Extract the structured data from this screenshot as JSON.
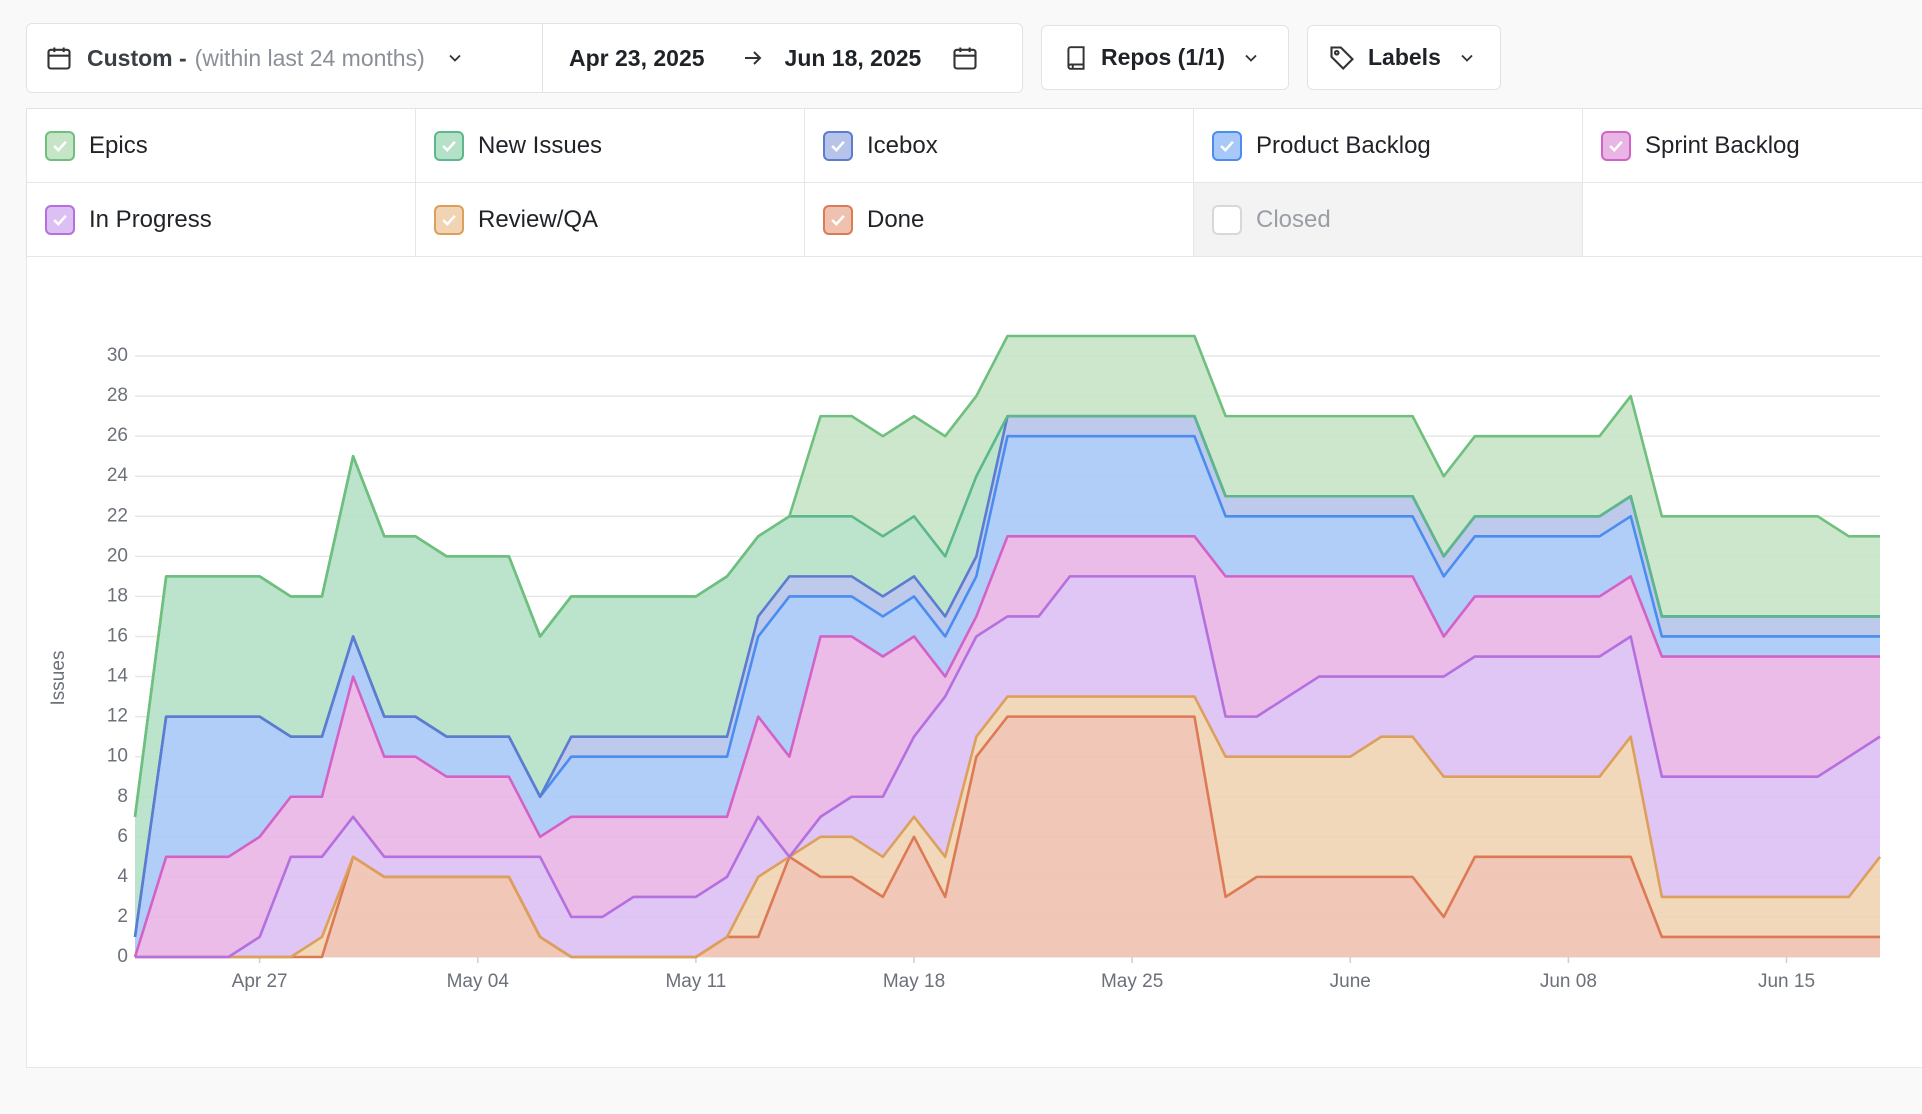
{
  "toolbar": {
    "range_label": "Custom -",
    "range_hint": "(within last 24 months)",
    "start_date": "Apr 23, 2025",
    "end_date": "Jun 18, 2025",
    "repos": "Repos (1/1)",
    "labels": "Labels"
  },
  "chart_data": {
    "type": "stacked_area",
    "y_label": "Issues",
    "categories": [
      null,
      null,
      null,
      null,
      "Apr 27",
      null,
      null,
      null,
      null,
      null,
      null,
      "May 04",
      null,
      null,
      null,
      null,
      null,
      null,
      "May 11",
      null,
      null,
      null,
      null,
      null,
      null,
      "May 18",
      null,
      null,
      null,
      null,
      null,
      null,
      "May 25",
      null,
      null,
      null,
      null,
      null,
      null,
      "June",
      null,
      null,
      null,
      null,
      null,
      null,
      "Jun 08",
      null,
      null,
      null,
      null,
      null,
      null,
      "Jun 15",
      null,
      null,
      null
    ],
    "ylim": [
      0,
      31
    ],
    "yticks": [
      0,
      2,
      4,
      6,
      8,
      10,
      12,
      14,
      16,
      18,
      20,
      22,
      24,
      26,
      28,
      30
    ],
    "grid": true,
    "series": [
      {
        "name": "Epics",
        "color": "#6fbf7e",
        "fill": "#c6e4c6",
        "values": [
          0,
          0,
          0,
          0,
          0,
          0,
          0,
          0,
          0,
          0,
          0,
          0,
          0,
          0,
          0,
          0,
          0,
          0,
          0,
          0,
          0,
          0,
          5,
          5,
          5,
          5,
          6,
          4,
          4,
          4,
          4,
          4,
          4,
          4,
          4,
          4,
          4,
          4,
          4,
          4,
          4,
          4,
          4,
          4,
          4,
          4,
          4,
          4,
          5,
          5,
          5,
          5,
          5,
          5,
          5,
          4,
          4
        ]
      },
      {
        "name": "New Issues",
        "color": "#5cb88a",
        "fill": "#b5e1c8",
        "values": [
          6,
          7,
          7,
          7,
          7,
          7,
          7,
          9,
          9,
          9,
          9,
          9,
          9,
          8,
          7,
          7,
          7,
          7,
          7,
          8,
          4,
          3,
          3,
          3,
          3,
          3,
          3,
          4,
          0,
          0,
          0,
          0,
          0,
          0,
          0,
          0,
          0,
          0,
          0,
          0,
          0,
          0,
          0,
          0,
          0,
          0,
          0,
          0,
          0,
          0,
          0,
          0,
          0,
          0,
          0,
          0,
          0
        ]
      },
      {
        "name": "Icebox",
        "color": "#5b7ccf",
        "fill": "#b6c4ea",
        "values": [
          0,
          0,
          0,
          0,
          0,
          0,
          0,
          0,
          0,
          0,
          0,
          0,
          0,
          0,
          1,
          1,
          1,
          1,
          1,
          1,
          1,
          1,
          1,
          1,
          1,
          1,
          1,
          1,
          1,
          1,
          1,
          1,
          1,
          1,
          1,
          1,
          1,
          1,
          1,
          1,
          1,
          1,
          1,
          1,
          1,
          1,
          1,
          1,
          1,
          1,
          1,
          1,
          1,
          1,
          1,
          1,
          1
        ]
      },
      {
        "name": "Product Backlog",
        "color": "#4a8cef",
        "fill": "#a8c9f8",
        "values": [
          1,
          7,
          7,
          7,
          6,
          3,
          3,
          2,
          2,
          2,
          2,
          2,
          2,
          2,
          3,
          3,
          3,
          3,
          3,
          3,
          4,
          8,
          2,
          2,
          2,
          2,
          2,
          2,
          5,
          5,
          5,
          5,
          5,
          5,
          5,
          3,
          3,
          3,
          3,
          3,
          3,
          3,
          3,
          3,
          3,
          3,
          3,
          3,
          3,
          1,
          1,
          1,
          1,
          1,
          1,
          1,
          1
        ]
      },
      {
        "name": "Sprint Backlog",
        "color": "#d462c6",
        "fill": "#e8b5e4",
        "values": [
          0,
          5,
          5,
          5,
          5,
          3,
          3,
          7,
          5,
          5,
          4,
          4,
          4,
          1,
          5,
          5,
          4,
          4,
          4,
          3,
          5,
          5,
          9,
          8,
          7,
          5,
          1,
          1,
          4,
          4,
          2,
          2,
          2,
          2,
          2,
          7,
          7,
          6,
          5,
          5,
          5,
          5,
          2,
          3,
          3,
          3,
          3,
          3,
          3,
          6,
          6,
          6,
          6,
          6,
          6,
          5,
          4
        ]
      },
      {
        "name": "In Progress",
        "color": "#b56fdf",
        "fill": "#ddc0f3",
        "values": [
          0,
          0,
          0,
          0,
          1,
          5,
          4,
          2,
          1,
          1,
          1,
          1,
          1,
          4,
          2,
          2,
          3,
          3,
          3,
          3,
          3,
          0,
          1,
          2,
          3,
          4,
          8,
          5,
          4,
          4,
          6,
          6,
          6,
          6,
          6,
          2,
          2,
          3,
          4,
          4,
          3,
          3,
          5,
          6,
          6,
          6,
          6,
          6,
          5,
          6,
          6,
          6,
          6,
          6,
          6,
          7,
          6
        ]
      },
      {
        "name": "Review/QA",
        "color": "#dc9f5c",
        "fill": "#f0d4b3",
        "values": [
          0,
          0,
          0,
          0,
          0,
          0,
          1,
          0,
          0,
          0,
          0,
          0,
          0,
          0,
          0,
          0,
          0,
          0,
          0,
          0,
          3,
          0,
          2,
          2,
          2,
          1,
          2,
          1,
          1,
          1,
          1,
          1,
          1,
          1,
          1,
          7,
          6,
          6,
          6,
          6,
          7,
          7,
          7,
          4,
          4,
          4,
          4,
          4,
          6,
          2,
          2,
          2,
          2,
          2,
          2,
          2,
          4
        ]
      },
      {
        "name": "Done",
        "color": "#dd7a56",
        "fill": "#efc1af",
        "values": [
          0,
          0,
          0,
          0,
          0,
          0,
          0,
          5,
          4,
          4,
          4,
          4,
          4,
          1,
          0,
          0,
          0,
          0,
          0,
          1,
          1,
          5,
          4,
          4,
          3,
          6,
          3,
          10,
          12,
          12,
          12,
          12,
          12,
          12,
          12,
          3,
          4,
          4,
          4,
          4,
          4,
          4,
          2,
          5,
          5,
          5,
          5,
          5,
          5,
          1,
          1,
          1,
          1,
          1,
          1,
          1,
          1
        ]
      }
    ],
    "hidden_series": [
      {
        "name": "Closed"
      }
    ]
  }
}
